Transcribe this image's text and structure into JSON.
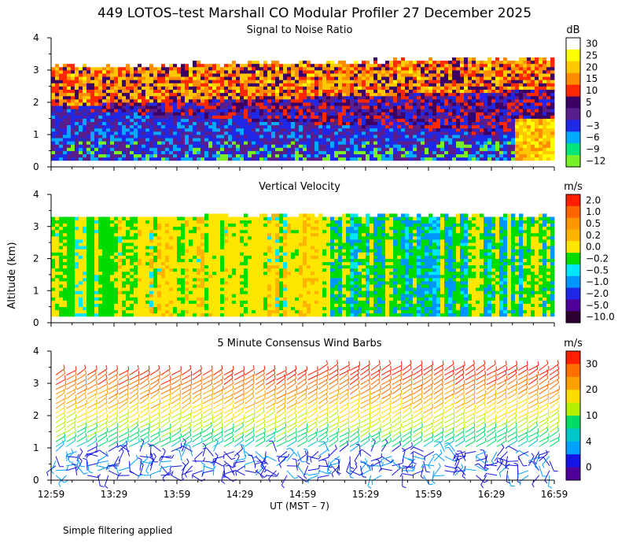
{
  "figure": {
    "title": "449 LOTOS–test Marshall CO Modular Profiler 27 December 2025",
    "ylabel": "Altitude (km)",
    "xlabel": "UT  (MST – 7)",
    "footnote": "Simple filtering applied"
  },
  "chart_data": [
    {
      "type": "heatmap",
      "title": "Signal to Noise Ratio",
      "units": "dB",
      "xlabel": "UT  (MST – 7)",
      "ylabel": "Altitude (km)",
      "x_ticks": [
        "12:59",
        "13:29",
        "13:59",
        "14:29",
        "14:59",
        "15:29",
        "15:59",
        "16:29",
        "16:59"
      ],
      "xlim_hours": [
        12.983,
        16.983
      ],
      "y_ticks": [
        0,
        1,
        2,
        3,
        4
      ],
      "ylim": [
        0,
        4
      ],
      "colorbar_labels": [
        "30",
        "25",
        "20",
        "15",
        "10",
        "5",
        "0",
        "−3",
        "−6",
        "−9",
        "−12"
      ],
      "colorbar_colors": [
        "#ffffff",
        "#ffff00",
        "#ffc800",
        "#ff8c00",
        "#ff2800",
        "#3c0064",
        "#5a1e8c",
        "#1e28e6",
        "#00aaff",
        "#00e678",
        "#78f028"
      ]
    },
    {
      "type": "heatmap",
      "title": "Vertical Velocity",
      "units": "m/s",
      "xlabel": "UT  (MST – 7)",
      "ylabel": "Altitude (km)",
      "x_ticks": [
        "12:59",
        "13:29",
        "13:59",
        "14:29",
        "14:59",
        "15:29",
        "15:59",
        "16:29",
        "16:59"
      ],
      "xlim_hours": [
        12.983,
        16.983
      ],
      "y_ticks": [
        0,
        1,
        2,
        3,
        4
      ],
      "ylim": [
        0,
        4
      ],
      "colorbar_labels": [
        "2.0",
        "1.0",
        "0.5",
        "0.2",
        "0.0",
        "−0.2",
        "−0.5",
        "−1.0",
        "−2.0",
        "−5.0",
        "−10.0"
      ],
      "colorbar_colors": [
        "#ff1e00",
        "#ff6400",
        "#ff9600",
        "#ffb400",
        "#ffe600",
        "#00dc00",
        "#00e6ff",
        "#0096ff",
        "#1e28e6",
        "#50009a",
        "#2d0032"
      ]
    },
    {
      "type": "scatter",
      "title": "5 Minute Consensus Wind Barbs",
      "units": "m/s",
      "xlabel": "UT  (MST – 7)",
      "ylabel": "Altitude (km)",
      "x_ticks": [
        "12:59",
        "13:29",
        "13:59",
        "14:29",
        "14:59",
        "15:29",
        "15:59",
        "16:29",
        "16:59"
      ],
      "xlim_hours": [
        12.983,
        16.983
      ],
      "y_ticks": [
        0,
        1,
        2,
        3,
        4
      ],
      "ylim": [
        0,
        4
      ],
      "colorbar_labels": [
        "30",
        "20",
        "10",
        "4",
        "0"
      ],
      "colorbar_colors": [
        "#ff1e00",
        "#ff6e00",
        "#ffa000",
        "#ffdc00",
        "#b4f000",
        "#00dc64",
        "#00c8c8",
        "#00a0ff",
        "#1414e6",
        "#50009a"
      ]
    }
  ]
}
